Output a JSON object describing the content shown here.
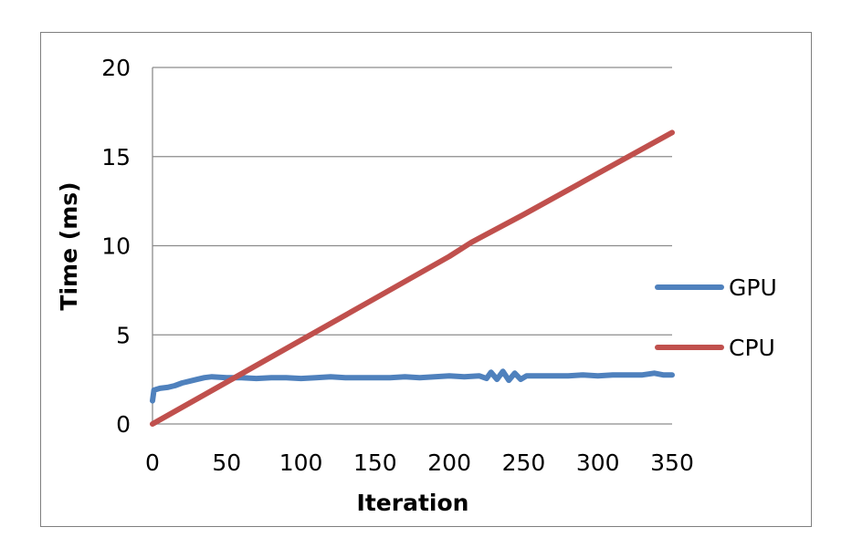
{
  "chart_data": {
    "type": "line",
    "title": "",
    "xlabel": "Iteration",
    "ylabel": "Time (ms)",
    "xlim": [
      0,
      350
    ],
    "ylim": [
      0,
      20
    ],
    "x_ticks": [
      "0",
      "50",
      "100",
      "150",
      "200",
      "250",
      "300",
      "350"
    ],
    "y_ticks": [
      "0",
      "5",
      "10",
      "15",
      "20"
    ],
    "grid": "horizontal",
    "legend_position": "right",
    "series": [
      {
        "name": "GPU",
        "color": "#4f81bd",
        "points": [
          [
            0,
            1.3
          ],
          [
            1,
            1.9
          ],
          [
            5,
            2.0
          ],
          [
            10,
            2.05
          ],
          [
            15,
            2.15
          ],
          [
            20,
            2.3
          ],
          [
            25,
            2.4
          ],
          [
            30,
            2.5
          ],
          [
            35,
            2.6
          ],
          [
            40,
            2.65
          ],
          [
            50,
            2.6
          ],
          [
            60,
            2.6
          ],
          [
            70,
            2.55
          ],
          [
            80,
            2.6
          ],
          [
            90,
            2.6
          ],
          [
            100,
            2.55
          ],
          [
            110,
            2.6
          ],
          [
            120,
            2.65
          ],
          [
            130,
            2.6
          ],
          [
            140,
            2.6
          ],
          [
            150,
            2.6
          ],
          [
            160,
            2.6
          ],
          [
            170,
            2.65
          ],
          [
            180,
            2.6
          ],
          [
            190,
            2.65
          ],
          [
            200,
            2.7
          ],
          [
            210,
            2.65
          ],
          [
            220,
            2.7
          ],
          [
            225,
            2.55
          ],
          [
            228,
            2.9
          ],
          [
            232,
            2.5
          ],
          [
            236,
            2.95
          ],
          [
            240,
            2.45
          ],
          [
            244,
            2.85
          ],
          [
            248,
            2.5
          ],
          [
            252,
            2.7
          ],
          [
            260,
            2.7
          ],
          [
            270,
            2.7
          ],
          [
            280,
            2.7
          ],
          [
            290,
            2.75
          ],
          [
            300,
            2.7
          ],
          [
            310,
            2.75
          ],
          [
            320,
            2.75
          ],
          [
            330,
            2.75
          ],
          [
            338,
            2.85
          ],
          [
            344,
            2.75
          ],
          [
            350,
            2.75
          ]
        ]
      },
      {
        "name": "CPU",
        "color": "#c0504d",
        "points": [
          [
            0,
            0.0
          ],
          [
            50,
            2.35
          ],
          [
            100,
            4.7
          ],
          [
            150,
            7.05
          ],
          [
            200,
            9.4
          ],
          [
            215,
            10.2
          ],
          [
            250,
            11.75
          ],
          [
            300,
            14.05
          ],
          [
            350,
            16.35
          ]
        ]
      }
    ]
  }
}
